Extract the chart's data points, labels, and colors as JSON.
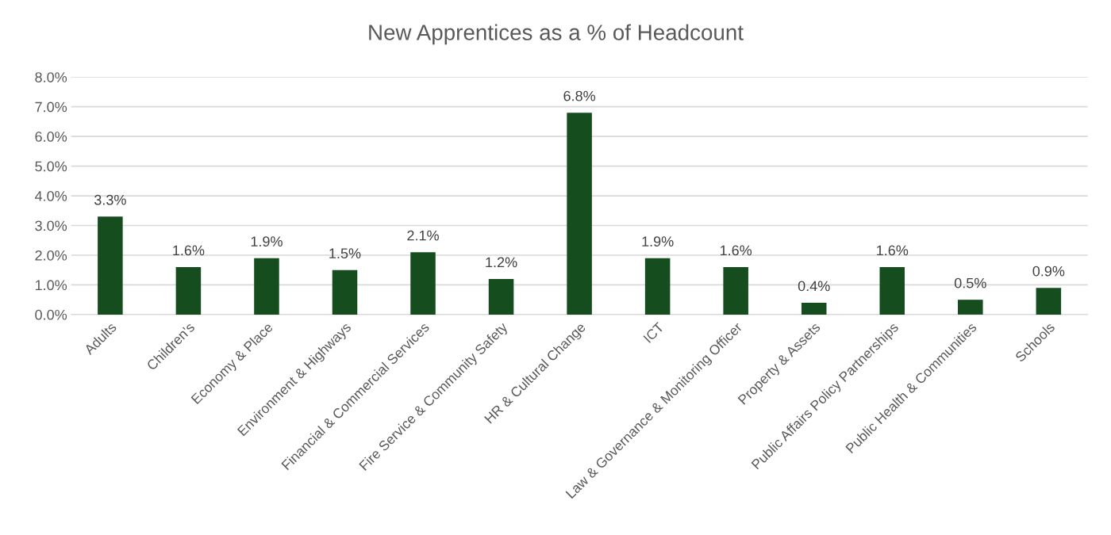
{
  "chart_data": {
    "type": "bar",
    "title": "New Apprentices as a % of Headcount",
    "categories": [
      "Adults",
      "Children's",
      "Economy & Place",
      "Environment & Highways",
      "Financial & Commercial Services",
      "Fire Service & Community Safety",
      "HR & Cultural Change",
      "ICT",
      "Law & Governance & Monitoring Officer",
      "Property & Assets",
      "Public Affairs Policy Partnerships",
      "Public Health & Communities",
      "Schools"
    ],
    "values": [
      3.3,
      1.6,
      1.9,
      1.5,
      2.1,
      1.2,
      6.8,
      1.9,
      1.6,
      0.4,
      1.6,
      0.5,
      0.9
    ],
    "value_labels": [
      "3.3%",
      "1.6%",
      "1.9%",
      "1.5%",
      "2.1%",
      "1.2%",
      "6.8%",
      "1.9%",
      "1.6%",
      "0.4%",
      "1.6%",
      "0.5%",
      "0.9%"
    ],
    "color": "#154d1f",
    "ylim": [
      0,
      8
    ],
    "yticks": [
      {
        "value": 0,
        "label": "0.0%"
      },
      {
        "value": 1,
        "label": "1.0%"
      },
      {
        "value": 2,
        "label": "2.0%"
      },
      {
        "value": 3,
        "label": "3.0%"
      },
      {
        "value": 4,
        "label": "4.0%"
      },
      {
        "value": 5,
        "label": "5.0%"
      },
      {
        "value": 6,
        "label": "6.0%"
      },
      {
        "value": 7,
        "label": "7.0%"
      },
      {
        "value": 8,
        "label": "8.0%"
      }
    ],
    "grid": "y",
    "legend": false
  }
}
